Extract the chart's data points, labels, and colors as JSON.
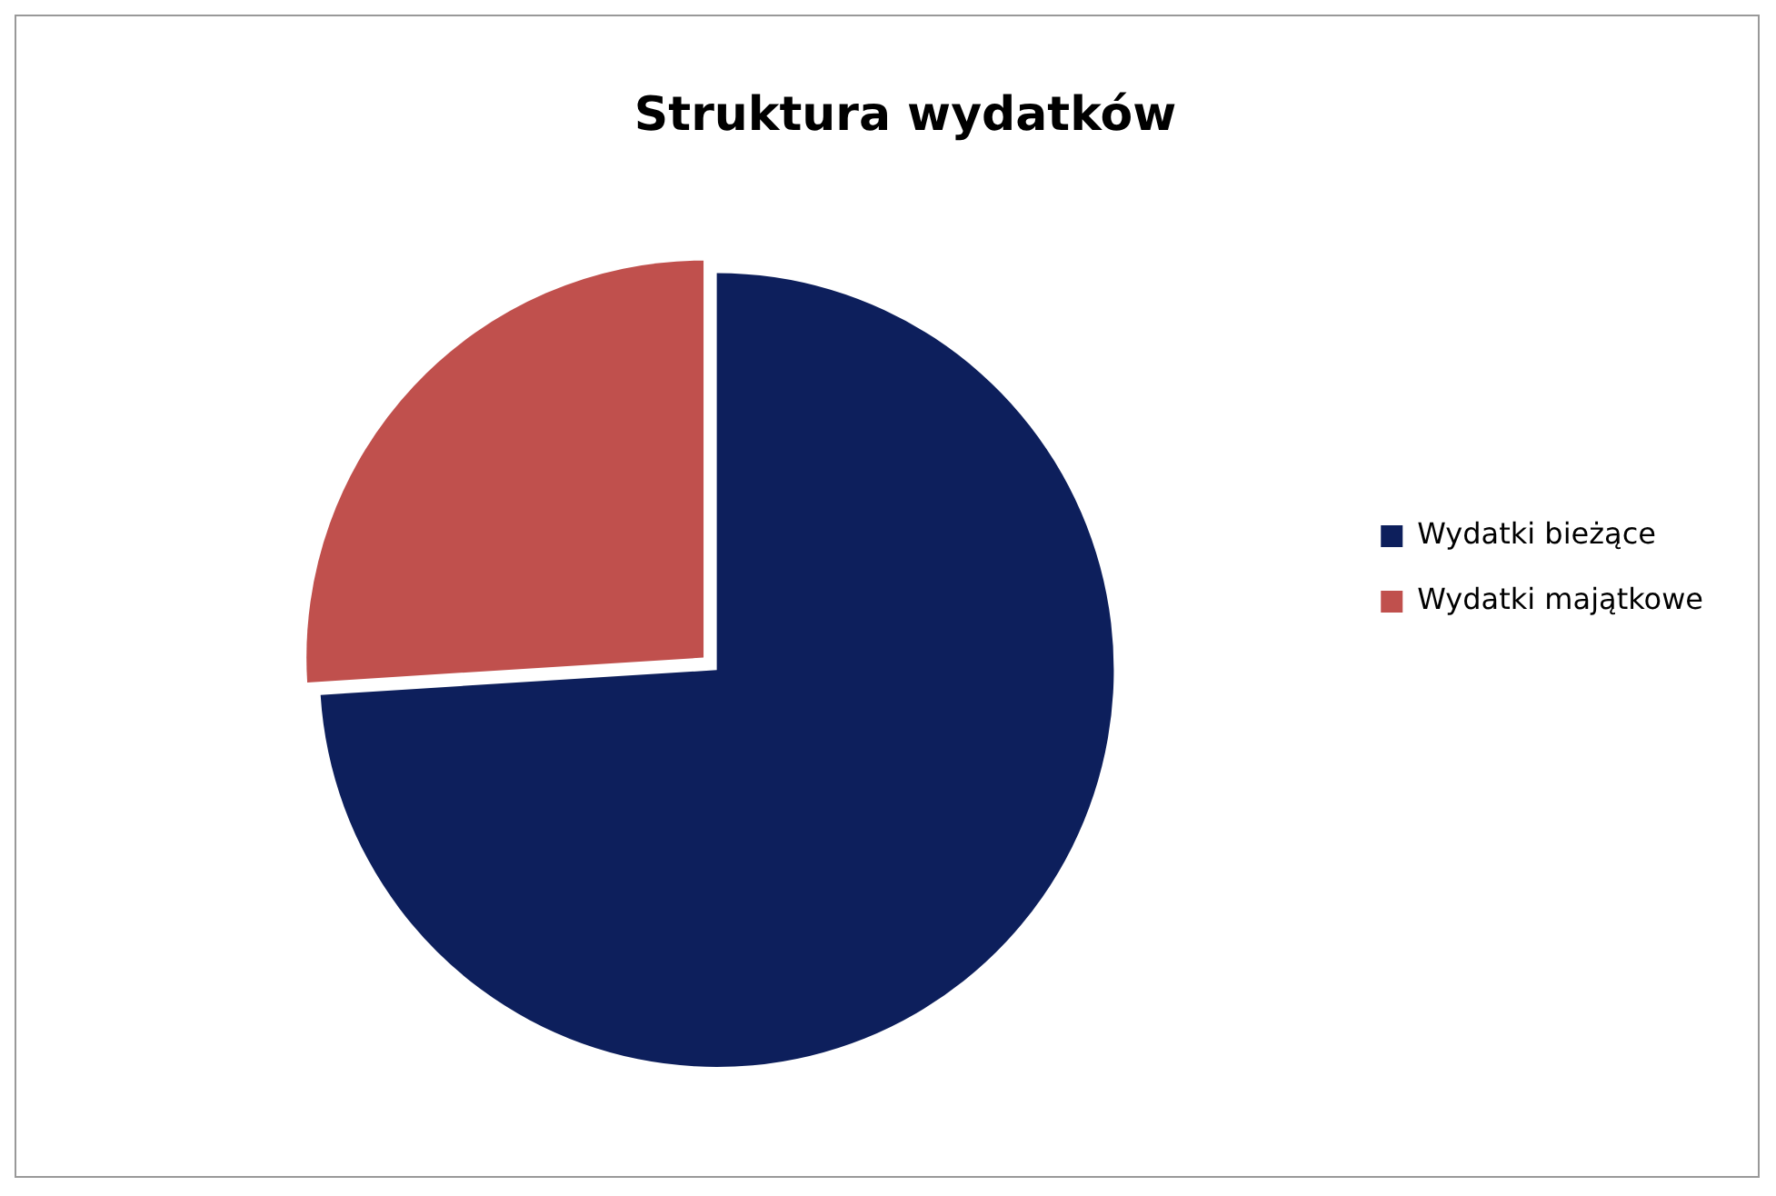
{
  "chart_data": {
    "type": "pie",
    "title": "Struktura wydatków",
    "categories": [
      "Wydatki bieżące",
      "Wydatki majątkowe"
    ],
    "values": [
      74,
      26
    ],
    "colors": [
      "#0d1f5c",
      "#c0504d"
    ],
    "legend": "right"
  }
}
